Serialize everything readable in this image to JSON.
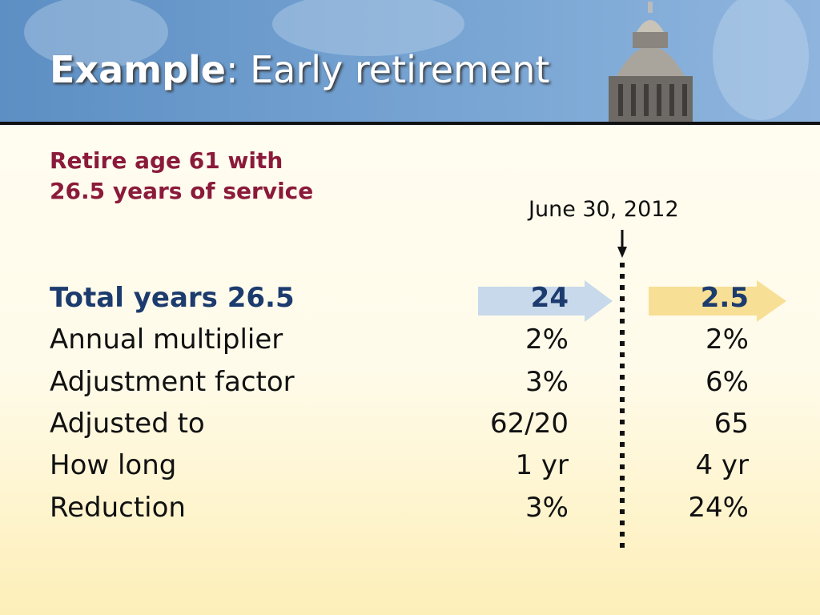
{
  "header": {
    "title_bold": "Example",
    "title_rest": ": Early retirement"
  },
  "subtitle": {
    "lines": [
      "Retire age 61 with",
      "26.5 years of service"
    ]
  },
  "cutoff_date": "June 30, 2012",
  "table": {
    "rows": [
      [
        "Total years 26.5",
        "24",
        "2.5"
      ],
      [
        "Annual multiplier",
        "2%",
        "2%"
      ],
      [
        "Adjustment factor",
        "3%",
        "6%"
      ],
      [
        "Adjusted to",
        "62/20",
        "65"
      ],
      [
        "How long",
        "1 yr",
        "4 yr"
      ],
      [
        "Reduction",
        "3%",
        "24%"
      ]
    ]
  }
}
